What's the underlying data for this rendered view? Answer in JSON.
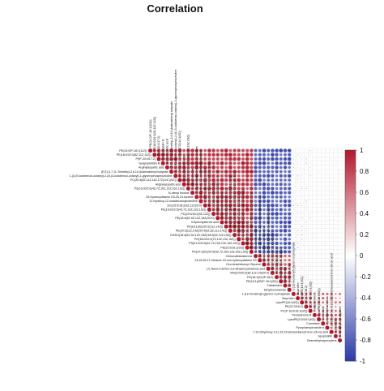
{
  "chart_data": {
    "type": "heatmap",
    "style": "correlation-circles-upper-triangle",
    "title": "Correlation",
    "colorbar": {
      "min": -1,
      "max": 1,
      "ticks": [
        1,
        0.8,
        0.6,
        0.4,
        0.2,
        0,
        -0.2,
        -0.4,
        -0.6,
        -0.8,
        -1
      ],
      "colors": [
        "#b2182b",
        "#ffffff",
        "#2c3aa6"
      ]
    },
    "variables": [
      "PE(24:0/P-18:1(11Z))",
      "PE(18:0/20:3(8Z,11Z,14Z))",
      "PI(P-20:0/17:2)",
      "Isoapoptolidin B",
      "Arginylaspartic acid",
      "(E,E)-3,7,11-Trimethyl-2,6,10-dodecatrienyl butyrate",
      "1-(3-(9-iodobenzo-octanyl)-2-(8-(3-iodobenzo-octanyl)-1-glycerophosphocholine",
      "PC(20:4(8Z,11Z,14Z,17Z)/14:1(9Z))",
      "Arginylaspartic acid",
      "PS(16:0/22:6(4Z,7Z,10Z,13Z,16Z,19Z))",
      "N-oleoyl leucine",
      "25-Hydroxyvitamin D3-26,23-lactone",
      "12-Hydroxy-12-octadecanoylcarnitine",
      "DG(15:0/18:2(9Z,12Z)/0:0)",
      "PE(18:0/22:5(4Z,7Z,10Z,13Z,16Z))",
      "PC(22:6/18:2(9Z,12Z))",
      "PE(18:4(6Z,9Z,12Z,15Z)/20:0)",
      "3-Epiecdysteroic acid",
      "PE(18:1(9Z)/20:2(11Z,14Z))",
      "PE(20:2(11Z,14Z)/20:4(5Z,8Z,11Z,14Z))",
      "DGDG(18:4(6Z,9Z,12Z,15Z)/18:3(9Z,12Z,15Z))",
      "PG(18:0/22:4(7Z,10Z,13Z,16Z))",
      "PS(21:0/22:6(4Z,7Z,10Z,13Z,16Z,19Z))",
      "PE(22:5/16:1(9Z))",
      "PS(14:1(9Z)/22:6(4Z,7Z,10Z,13Z,16Z,19Z))",
      "Chinoxatestosterone",
      "24,25,26,27-Tetranor-23-oxo-hydroxyvitamin D3",
      "Oxo-Arachidonoyl Glycerol",
      "(+)-Neso-3-amino-2,6-dihydroxybutanoic acid",
      "MG(0:0/20:3(8Z,11Z,14Z)/0:0)",
      "PE(18:1(9Z)/P-16:0)",
      "PE(16:1(9Z)/P-18:1(9Z))",
      "Falcarindiol",
      "Dihydroceramide",
      "1-(1Z-eicosenyl)-glycero-3-phosphate",
      "Ibuprofen",
      "LysoPE(18:1(9Z))",
      "PE(22:2/18:2)",
      "PC(P-16:0/16:1(9Z))",
      "Penasterone B",
      "LysoPE(0:0/18:1(9Z))",
      "Cornelane",
      "Pyrophaeophorbide a",
      "7,12-Dihydroxy-3,11,15,23-tetraoxolanost-8-en-26-oic acid",
      "Apoptolidin",
      "Desmethylnaproxylene"
    ],
    "blocks": [
      {
        "from": 0,
        "to": 25,
        "r": 0.85
      },
      {
        "from": 25,
        "to": 34,
        "r": 0.75
      },
      {
        "from": 34,
        "to": 39,
        "r": 0.7
      },
      {
        "from": 39,
        "to": 46,
        "r": 0.7
      }
    ],
    "between_blocks": [
      {
        "a": 0,
        "b": 1,
        "r": -0.8
      },
      {
        "a": 0,
        "b": 2,
        "r": -0.2
      },
      {
        "a": 0,
        "b": 3,
        "r": 0.1
      },
      {
        "a": 1,
        "b": 2,
        "r": 0.15
      },
      {
        "a": 1,
        "b": 3,
        "r": 0.05
      },
      {
        "a": 2,
        "b": 3,
        "r": 0.55
      }
    ]
  }
}
